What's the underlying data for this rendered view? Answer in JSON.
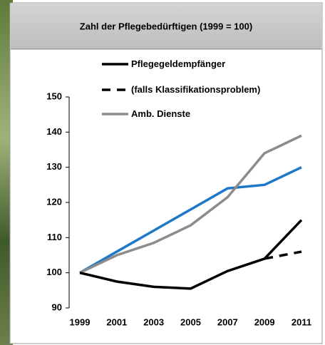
{
  "chart_data": {
    "type": "line",
    "title": "Zahl der Pflegebedürftigen (1999 = 100)",
    "categories": [
      "1999",
      "2001",
      "2003",
      "2005",
      "2007",
      "2009",
      "2011"
    ],
    "series": [
      {
        "name": "Pflegegeldempfänger",
        "color": "#000000",
        "dash": false,
        "values": [
          100,
          97.5,
          96,
          95.5,
          100.5,
          104,
          115
        ]
      },
      {
        "name": "(falls Klassifikationsproblem)",
        "color": "#000000",
        "dash": true,
        "values": [
          null,
          null,
          null,
          null,
          null,
          104,
          106
        ]
      },
      {
        "name": "Amb. Dienste",
        "color": "#8c8c8c",
        "dash": false,
        "values": [
          100,
          105,
          108.5,
          113.5,
          121.5,
          134,
          139
        ]
      },
      {
        "color": "#1f77c8",
        "dash": false,
        "values": [
          100,
          106,
          112,
          118,
          124,
          125,
          130
        ]
      }
    ],
    "ylim": [
      90,
      150
    ],
    "yticks": [
      90,
      100,
      110,
      120,
      130,
      140,
      150
    ]
  }
}
